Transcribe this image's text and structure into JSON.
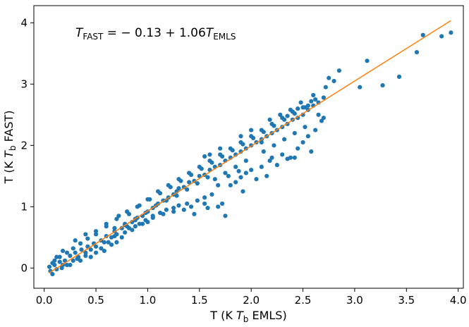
{
  "chart_data": {
    "type": "scatter",
    "title": "",
    "xlabel": "T (K $T_\\mathrm{b}$ EMLS)",
    "ylabel": "T (K $T_\\mathrm{b}$ FAST)",
    "xlabel_parts": [
      "T (K ",
      "T",
      "b",
      " EMLS)"
    ],
    "ylabel_parts": [
      "T (K ",
      "T",
      "b",
      " FAST)"
    ],
    "xlim": [
      -0.1,
      4.05
    ],
    "ylim": [
      -0.33,
      4.28
    ],
    "xticks": [
      0.0,
      0.5,
      1.0,
      1.5,
      2.0,
      2.5,
      3.0,
      3.5,
      4.0
    ],
    "xtick_labels": [
      "0.0",
      "0.5",
      "1.0",
      "1.5",
      "2.0",
      "2.5",
      "3.0",
      "3.5",
      "4.0"
    ],
    "yticks": [
      0,
      1,
      2,
      3,
      4
    ],
    "ytick_labels": [
      "0",
      "1",
      "2",
      "3",
      "4"
    ],
    "grid": false,
    "annotation": {
      "text": "$T_\\mathrm{FAST} = -0.13 + 1.06 T_\\mathrm{EMLS}$",
      "parts": [
        "T",
        "FAST",
        " = − 0.13 + 1.06",
        "T",
        "EMLS"
      ]
    },
    "colors": {
      "points": "#1f77b4",
      "fit_line": "#ff7f0e"
    },
    "fit": {
      "intercept": -0.13,
      "slope": 1.06,
      "x_range": [
        0.05,
        3.93
      ]
    },
    "series": [
      {
        "points": [
          [
            0.05,
            0.02
          ],
          [
            0.06,
            -0.05
          ],
          [
            0.08,
            -0.1
          ],
          [
            0.1,
            0.05
          ],
          [
            0.12,
            -0.02
          ],
          [
            0.15,
            0.1
          ],
          [
            0.17,
            0.0
          ],
          [
            0.2,
            0.12
          ],
          [
            0.22,
            0.05
          ],
          [
            0.25,
            0.2
          ],
          [
            0.28,
            0.12
          ],
          [
            0.3,
            0.25
          ],
          [
            0.33,
            0.18
          ],
          [
            0.36,
            0.3
          ],
          [
            0.4,
            0.25
          ],
          [
            0.42,
            0.35
          ],
          [
            0.45,
            0.3
          ],
          [
            0.48,
            0.4
          ],
          [
            0.5,
            0.35
          ],
          [
            0.55,
            0.45
          ],
          [
            0.58,
            0.42
          ],
          [
            0.6,
            0.52
          ],
          [
            0.65,
            0.5
          ],
          [
            0.68,
            0.6
          ],
          [
            0.7,
            0.55
          ],
          [
            0.75,
            0.65
          ],
          [
            0.78,
            0.7
          ],
          [
            0.8,
            0.68
          ],
          [
            0.85,
            0.75
          ],
          [
            0.88,
            0.8
          ],
          [
            0.9,
            0.82
          ],
          [
            0.95,
            0.85
          ],
          [
            1.0,
            0.92
          ],
          [
            1.05,
            0.98
          ],
          [
            1.08,
            1.02
          ],
          [
            1.1,
            1.05
          ],
          [
            1.15,
            1.1
          ],
          [
            1.2,
            1.15
          ],
          [
            1.25,
            1.2
          ],
          [
            1.28,
            1.25
          ],
          [
            1.3,
            1.3
          ],
          [
            1.35,
            1.32
          ],
          [
            1.4,
            1.4
          ],
          [
            1.45,
            1.42
          ],
          [
            1.5,
            1.5
          ],
          [
            1.55,
            1.52
          ],
          [
            1.6,
            1.6
          ],
          [
            1.65,
            1.65
          ],
          [
            1.7,
            1.68
          ],
          [
            1.75,
            1.75
          ],
          [
            1.8,
            1.8
          ],
          [
            1.85,
            1.85
          ],
          [
            1.9,
            1.9
          ],
          [
            1.95,
            1.95
          ],
          [
            2.0,
            2.0
          ],
          [
            2.05,
            2.05
          ],
          [
            2.1,
            2.1
          ],
          [
            2.15,
            2.15
          ],
          [
            2.2,
            2.2
          ],
          [
            2.25,
            2.25
          ],
          [
            2.3,
            2.3
          ],
          [
            2.35,
            2.35
          ],
          [
            2.4,
            2.42
          ],
          [
            2.45,
            2.45
          ],
          [
            2.5,
            2.5
          ],
          [
            2.55,
            2.58
          ],
          [
            2.6,
            2.65
          ],
          [
            2.65,
            2.7
          ],
          [
            2.7,
            2.78
          ],
          [
            2.72,
            2.95
          ],
          [
            2.75,
            3.1
          ],
          [
            2.8,
            3.05
          ],
          [
            2.85,
            3.22
          ],
          [
            3.05,
            2.95
          ],
          [
            3.12,
            3.38
          ],
          [
            3.27,
            2.98
          ],
          [
            3.43,
            3.12
          ],
          [
            3.6,
            3.52
          ],
          [
            3.66,
            3.8
          ],
          [
            3.84,
            3.78
          ],
          [
            3.93,
            3.84
          ],
          [
            0.12,
            0.18
          ],
          [
            0.18,
            0.28
          ],
          [
            0.3,
            0.45
          ],
          [
            0.4,
            0.55
          ],
          [
            0.5,
            0.6
          ],
          [
            0.6,
            0.72
          ],
          [
            0.72,
            0.85
          ],
          [
            0.82,
            0.88
          ],
          [
            0.92,
            1.02
          ],
          [
            1.02,
            1.12
          ],
          [
            1.12,
            1.22
          ],
          [
            1.22,
            1.32
          ],
          [
            1.32,
            1.42
          ],
          [
            1.42,
            1.52
          ],
          [
            1.52,
            1.62
          ],
          [
            1.62,
            1.72
          ],
          [
            1.72,
            1.82
          ],
          [
            1.82,
            1.92
          ],
          [
            1.92,
            2.02
          ],
          [
            2.02,
            2.12
          ],
          [
            2.12,
            2.22
          ],
          [
            2.22,
            2.32
          ],
          [
            2.32,
            2.42
          ],
          [
            2.42,
            2.52
          ],
          [
            2.52,
            2.62
          ],
          [
            0.62,
            0.42
          ],
          [
            0.68,
            0.52
          ],
          [
            0.78,
            0.58
          ],
          [
            0.82,
            0.65
          ],
          [
            0.88,
            0.68
          ],
          [
            0.92,
            0.72
          ],
          [
            0.98,
            0.78
          ],
          [
            1.05,
            0.85
          ],
          [
            1.12,
            0.9
          ],
          [
            1.18,
            0.95
          ],
          [
            1.25,
            0.98
          ],
          [
            1.3,
            1.02
          ],
          [
            1.38,
            1.05
          ],
          [
            1.42,
            1.0
          ],
          [
            1.48,
            1.1
          ],
          [
            1.55,
            1.15
          ],
          [
            1.58,
            0.98
          ],
          [
            1.62,
            1.2
          ],
          [
            1.68,
            1.0
          ],
          [
            1.72,
            1.05
          ],
          [
            1.75,
            0.85
          ],
          [
            1.8,
            1.35
          ],
          [
            1.85,
            1.4
          ],
          [
            1.9,
            1.48
          ],
          [
            1.92,
            1.25
          ],
          [
            1.95,
            1.55
          ],
          [
            2.0,
            1.6
          ],
          [
            2.05,
            1.45
          ],
          [
            2.1,
            1.65
          ],
          [
            2.15,
            1.5
          ],
          [
            2.18,
            1.75
          ],
          [
            2.2,
            1.8
          ],
          [
            2.25,
            1.68
          ],
          [
            2.3,
            1.85
          ],
          [
            2.35,
            1.78
          ],
          [
            2.38,
            1.8
          ],
          [
            2.42,
            1.8
          ],
          [
            2.45,
            1.95
          ],
          [
            2.5,
            2.05
          ],
          [
            2.55,
            2.15
          ],
          [
            2.58,
            1.9
          ],
          [
            2.62,
            2.25
          ],
          [
            2.68,
            2.4
          ],
          [
            2.7,
            2.45
          ],
          [
            1.05,
            0.82
          ],
          [
            1.15,
            0.88
          ],
          [
            1.25,
            0.92
          ],
          [
            1.35,
            0.95
          ],
          [
            1.45,
            0.88
          ],
          [
            1.55,
            1.05
          ],
          [
            0.35,
            0.12
          ],
          [
            0.4,
            0.2
          ],
          [
            0.45,
            0.18
          ],
          [
            0.5,
            0.25
          ],
          [
            0.55,
            0.32
          ],
          [
            0.58,
            0.28
          ],
          [
            0.65,
            0.38
          ],
          [
            0.7,
            0.42
          ],
          [
            0.75,
            0.5
          ],
          [
            0.85,
            0.62
          ],
          [
            0.95,
            0.72
          ],
          [
            1.0,
            0.75
          ],
          [
            2.4,
            2.55
          ],
          [
            2.45,
            2.6
          ],
          [
            2.5,
            2.62
          ],
          [
            2.55,
            2.65
          ],
          [
            2.58,
            2.72
          ],
          [
            2.62,
            2.75
          ],
          [
            2.6,
            2.82
          ],
          [
            2.48,
            2.7
          ],
          [
            2.38,
            2.58
          ],
          [
            2.3,
            2.45
          ],
          [
            2.2,
            2.35
          ],
          [
            2.1,
            2.25
          ],
          [
            2.0,
            2.15
          ],
          [
            1.9,
            2.05
          ],
          [
            1.8,
            1.95
          ],
          [
            1.7,
            1.85
          ],
          [
            1.6,
            1.75
          ],
          [
            1.5,
            1.65
          ],
          [
            1.4,
            1.55
          ],
          [
            1.3,
            1.45
          ],
          [
            1.2,
            1.35
          ],
          [
            1.1,
            1.25
          ],
          [
            1.0,
            1.12
          ],
          [
            0.9,
            1.0
          ],
          [
            0.8,
            0.92
          ],
          [
            0.7,
            0.8
          ],
          [
            0.6,
            0.68
          ],
          [
            0.5,
            0.55
          ],
          [
            0.42,
            0.48
          ],
          [
            0.35,
            0.4
          ],
          [
            0.28,
            0.32
          ],
          [
            0.22,
            0.25
          ],
          [
            0.15,
            0.18
          ],
          [
            0.1,
            0.12
          ],
          [
            2.0,
            2.25
          ],
          [
            1.9,
            2.15
          ],
          [
            2.1,
            2.05
          ],
          [
            1.65,
            1.45
          ],
          [
            1.75,
            1.55
          ],
          [
            1.85,
            1.65
          ],
          [
            1.95,
            1.75
          ],
          [
            1.68,
            1.35
          ],
          [
            1.78,
            1.5
          ],
          [
            1.88,
            1.58
          ],
          [
            2.12,
            1.9
          ],
          [
            2.22,
            2.0
          ],
          [
            2.32,
            2.1
          ],
          [
            2.42,
            2.2
          ],
          [
            2.52,
            2.3
          ],
          [
            2.65,
            2.5
          ],
          [
            0.08,
            0.08
          ],
          [
            0.18,
            0.05
          ],
          [
            0.25,
            0.05
          ],
          [
            0.32,
            0.15
          ],
          [
            1.18,
            1.1
          ],
          [
            1.28,
            1.18
          ],
          [
            1.38,
            1.28
          ],
          [
            1.48,
            1.38
          ],
          [
            1.58,
            1.48
          ],
          [
            0.98,
            0.9
          ],
          [
            0.88,
            0.78
          ],
          [
            0.78,
            0.72
          ],
          [
            0.68,
            0.65
          ],
          [
            2.18,
            2.42
          ],
          [
            2.28,
            2.5
          ],
          [
            2.35,
            2.48
          ],
          [
            1.6,
            1.85
          ],
          [
            1.55,
            1.82
          ],
          [
            1.7,
            1.95
          ]
        ]
      }
    ]
  }
}
